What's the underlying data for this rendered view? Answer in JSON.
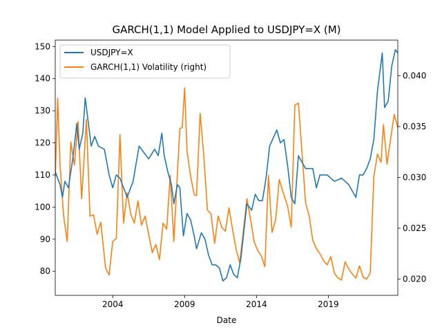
{
  "chart_data": {
    "type": "line",
    "title": "GARCH(1,1) Model Applied to USDJPY=X (M)",
    "xlabel": "Date",
    "ylabel": "",
    "ylabel_right": "",
    "x_range": [
      "2000-01",
      "2023-11"
    ],
    "xticks": [
      "2004",
      "2009",
      "2014",
      "2019"
    ],
    "ylim": [
      72.5,
      152.0
    ],
    "yticks": [
      80,
      90,
      100,
      110,
      120,
      130,
      140,
      150
    ],
    "ylim_right": [
      0.0184,
      0.0435
    ],
    "yticks_right": [
      "0.020",
      "0.025",
      "0.030",
      "0.035",
      "0.040"
    ],
    "legend_position": "upper-left",
    "grid": false,
    "series": [
      {
        "name": "USDJPY=X",
        "axis": "left",
        "color": "#1f77b4",
        "points": [
          [
            "2000-01",
            111
          ],
          [
            "2000-05",
            107
          ],
          [
            "2000-07",
            103
          ],
          [
            "2000-09",
            108
          ],
          [
            "2000-12",
            106
          ],
          [
            "2001-04",
            116
          ],
          [
            "2001-07",
            126
          ],
          [
            "2001-09",
            118
          ],
          [
            "2001-12",
            123
          ],
          [
            "2002-02",
            134
          ],
          [
            "2002-05",
            125
          ],
          [
            "2002-07",
            119
          ],
          [
            "2002-10",
            122
          ],
          [
            "2003-01",
            119
          ],
          [
            "2003-06",
            118
          ],
          [
            "2003-10",
            110
          ],
          [
            "2004-01",
            106
          ],
          [
            "2004-04",
            110
          ],
          [
            "2004-07",
            109
          ],
          [
            "2004-10",
            106
          ],
          [
            "2005-01",
            103
          ],
          [
            "2005-06",
            108
          ],
          [
            "2005-11",
            119
          ],
          [
            "2006-03",
            117
          ],
          [
            "2006-07",
            115
          ],
          [
            "2006-12",
            118
          ],
          [
            "2007-03",
            116
          ],
          [
            "2007-06",
            123
          ],
          [
            "2007-08",
            116
          ],
          [
            "2007-11",
            111
          ],
          [
            "2008-02",
            107
          ],
          [
            "2008-04",
            101
          ],
          [
            "2008-07",
            107
          ],
          [
            "2008-09",
            106
          ],
          [
            "2008-12",
            91
          ],
          [
            "2009-03",
            98
          ],
          [
            "2009-06",
            96
          ],
          [
            "2009-09",
            91
          ],
          [
            "2009-11",
            87
          ],
          [
            "2010-03",
            92
          ],
          [
            "2010-06",
            90
          ],
          [
            "2010-09",
            85
          ],
          [
            "2010-12",
            82
          ],
          [
            "2011-03",
            82
          ],
          [
            "2011-06",
            81
          ],
          [
            "2011-09",
            77
          ],
          [
            "2011-12",
            78
          ],
          [
            "2012-03",
            82
          ],
          [
            "2012-06",
            79
          ],
          [
            "2012-09",
            78
          ],
          [
            "2012-12",
            84
          ],
          [
            "2013-05",
            101
          ],
          [
            "2013-09",
            99
          ],
          [
            "2013-12",
            104
          ],
          [
            "2014-03",
            102
          ],
          [
            "2014-06",
            102
          ],
          [
            "2014-09",
            109
          ],
          [
            "2014-12",
            119
          ],
          [
            "2015-06",
            124
          ],
          [
            "2015-09",
            120
          ],
          [
            "2015-12",
            121
          ],
          [
            "2016-03",
            113
          ],
          [
            "2016-06",
            103
          ],
          [
            "2016-09",
            101
          ],
          [
            "2016-12",
            116
          ],
          [
            "2017-06",
            112
          ],
          [
            "2017-09",
            112
          ],
          [
            "2017-12",
            112
          ],
          [
            "2018-03",
            106
          ],
          [
            "2018-06",
            110
          ],
          [
            "2018-12",
            110
          ],
          [
            "2019-06",
            108
          ],
          [
            "2019-12",
            109
          ],
          [
            "2020-03",
            108
          ],
          [
            "2020-06",
            107
          ],
          [
            "2020-12",
            103
          ],
          [
            "2021-03",
            110
          ],
          [
            "2021-06",
            110
          ],
          [
            "2021-09",
            112
          ],
          [
            "2021-12",
            115
          ],
          [
            "2022-03",
            121
          ],
          [
            "2022-06",
            136
          ],
          [
            "2022-10",
            148
          ],
          [
            "2022-12",
            131
          ],
          [
            "2023-03",
            133
          ],
          [
            "2023-06",
            144
          ],
          [
            "2023-09",
            149
          ],
          [
            "2023-11",
            148
          ]
        ]
      },
      {
        "name": "GARCH(1,1) Volatility (right)",
        "axis": "right",
        "color": "#ff7f0e",
        "points": [
          [
            "2000-01",
            0.03
          ],
          [
            "2000-03",
            0.0378
          ],
          [
            "2000-05",
            0.0313
          ],
          [
            "2000-08",
            0.0262
          ],
          [
            "2000-11",
            0.0237
          ],
          [
            "2001-02",
            0.0335
          ],
          [
            "2001-05",
            0.0312
          ],
          [
            "2001-08",
            0.0355
          ],
          [
            "2001-11",
            0.0279
          ],
          [
            "2002-03",
            0.0357
          ],
          [
            "2002-06",
            0.0262
          ],
          [
            "2002-09",
            0.0263
          ],
          [
            "2002-12",
            0.0244
          ],
          [
            "2003-03",
            0.0256
          ],
          [
            "2003-07",
            0.0211
          ],
          [
            "2003-10",
            0.0204
          ],
          [
            "2004-01",
            0.0237
          ],
          [
            "2004-04",
            0.024
          ],
          [
            "2004-07",
            0.0342
          ],
          [
            "2004-10",
            0.0255
          ],
          [
            "2005-01",
            0.0285
          ],
          [
            "2005-04",
            0.0264
          ],
          [
            "2005-07",
            0.0255
          ],
          [
            "2005-10",
            0.0277
          ],
          [
            "2006-01",
            0.0253
          ],
          [
            "2006-04",
            0.0262
          ],
          [
            "2006-07",
            0.0244
          ],
          [
            "2006-10",
            0.0226
          ],
          [
            "2007-01",
            0.0234
          ],
          [
            "2007-04",
            0.0219
          ],
          [
            "2007-07",
            0.0255
          ],
          [
            "2007-10",
            0.0249
          ],
          [
            "2008-01",
            0.0302
          ],
          [
            "2008-04",
            0.0237
          ],
          [
            "2008-07",
            0.0304
          ],
          [
            "2008-09",
            0.0348
          ],
          [
            "2008-11",
            0.0349
          ],
          [
            "2009-01",
            0.0388
          ],
          [
            "2009-03",
            0.0326
          ],
          [
            "2009-06",
            0.0301
          ],
          [
            "2009-09",
            0.0283
          ],
          [
            "2009-11",
            0.0282
          ],
          [
            "2010-02",
            0.0363
          ],
          [
            "2010-05",
            0.0322
          ],
          [
            "2010-08",
            0.0268
          ],
          [
            "2010-11",
            0.0264
          ],
          [
            "2011-02",
            0.0235
          ],
          [
            "2011-05",
            0.0262
          ],
          [
            "2011-08",
            0.0251
          ],
          [
            "2011-11",
            0.0247
          ],
          [
            "2012-02",
            0.027
          ],
          [
            "2012-05",
            0.0249
          ],
          [
            "2012-08",
            0.0229
          ],
          [
            "2012-11",
            0.0216
          ],
          [
            "2013-02",
            0.0247
          ],
          [
            "2013-05",
            0.0279
          ],
          [
            "2013-08",
            0.0259
          ],
          [
            "2013-11",
            0.0237
          ],
          [
            "2014-02",
            0.0228
          ],
          [
            "2014-05",
            0.0223
          ],
          [
            "2014-08",
            0.0212
          ],
          [
            "2014-11",
            0.0302
          ],
          [
            "2015-02",
            0.0246
          ],
          [
            "2015-05",
            0.0258
          ],
          [
            "2015-08",
            0.0298
          ],
          [
            "2015-11",
            0.0286
          ],
          [
            "2016-03",
            0.0272
          ],
          [
            "2016-06",
            0.0251
          ],
          [
            "2016-09",
            0.0371
          ],
          [
            "2016-12",
            0.0373
          ],
          [
            "2017-03",
            0.0324
          ],
          [
            "2017-06",
            0.0275
          ],
          [
            "2017-09",
            0.0262
          ],
          [
            "2017-12",
            0.0238
          ],
          [
            "2018-03",
            0.023
          ],
          [
            "2018-06",
            0.0225
          ],
          [
            "2018-09",
            0.0218
          ],
          [
            "2018-12",
            0.0214
          ],
          [
            "2019-03",
            0.0222
          ],
          [
            "2019-06",
            0.0206
          ],
          [
            "2019-09",
            0.0201
          ],
          [
            "2019-12",
            0.0199
          ],
          [
            "2020-03",
            0.0217
          ],
          [
            "2020-06",
            0.021
          ],
          [
            "2020-09",
            0.0205
          ],
          [
            "2020-12",
            0.0201
          ],
          [
            "2021-03",
            0.0213
          ],
          [
            "2021-06",
            0.0202
          ],
          [
            "2021-09",
            0.02
          ],
          [
            "2021-12",
            0.0206
          ],
          [
            "2022-03",
            0.0301
          ],
          [
            "2022-06",
            0.0323
          ],
          [
            "2022-09",
            0.0315
          ],
          [
            "2022-11",
            0.0352
          ],
          [
            "2023-02",
            0.0313
          ],
          [
            "2023-05",
            0.0338
          ],
          [
            "2023-08",
            0.0362
          ],
          [
            "2023-11",
            0.0349
          ]
        ]
      }
    ]
  }
}
